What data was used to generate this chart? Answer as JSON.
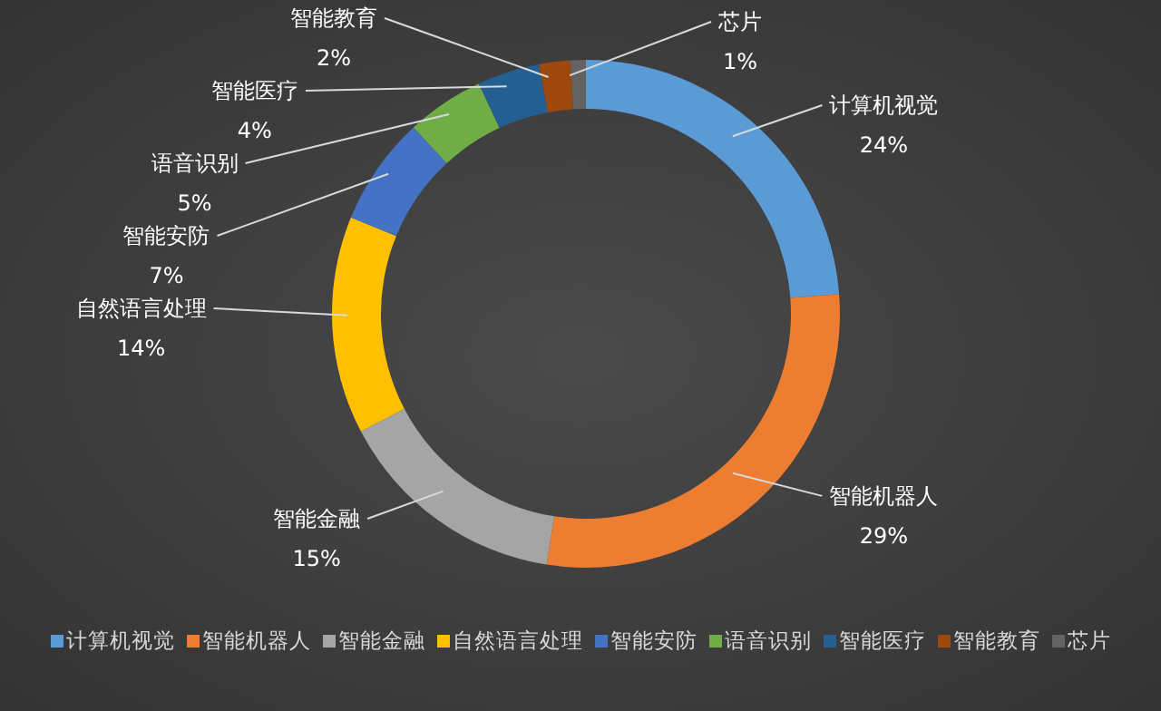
{
  "chart_data": {
    "type": "donut",
    "categories": [
      "计算机视觉",
      "智能机器人",
      "智能金融",
      "自然语言处理",
      "智能安防",
      "语音识别",
      "智能医疗",
      "智能教育",
      "芯片"
    ],
    "values": [
      24,
      29,
      15,
      14,
      7,
      5,
      4,
      2,
      1
    ],
    "value_labels": [
      "24%",
      "29%",
      "15%",
      "14%",
      "7%",
      "5%",
      "4%",
      "2%",
      "1%"
    ],
    "colors": [
      "#5b9bd5",
      "#ed7d31",
      "#a5a5a5",
      "#ffc000",
      "#4472c4",
      "#70ad47",
      "#255e91",
      "#9e480e",
      "#636363"
    ],
    "legend": "bottom"
  }
}
